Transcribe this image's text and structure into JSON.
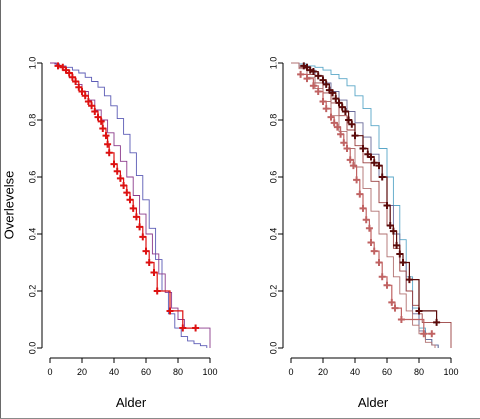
{
  "chart_data": [
    {
      "type": "line",
      "subtype": "kaplan-meier survival",
      "xlabel": "Alder",
      "ylabel": "Overlevelse",
      "xlim": [
        0,
        100
      ],
      "ylim": [
        0,
        1
      ],
      "x_ticks": [
        "0",
        "20",
        "40",
        "60",
        "80",
        "100"
      ],
      "y_ticks": [
        "0.0",
        "0.2",
        "0.4",
        "0.6",
        "0.8",
        "1.0"
      ],
      "series": [
        {
          "color": "#5b5bb5",
          "censored": false,
          "points": [
            [
              0,
              1
            ],
            [
              3,
              0.997
            ],
            [
              6,
              0.99
            ],
            [
              10,
              0.985
            ],
            [
              14,
              0.975
            ],
            [
              18,
              0.965
            ],
            [
              22,
              0.95
            ],
            [
              26,
              0.935
            ],
            [
              30,
              0.915
            ],
            [
              34,
              0.885
            ],
            [
              38,
              0.85
            ],
            [
              42,
              0.805
            ],
            [
              46,
              0.75
            ],
            [
              50,
              0.685
            ],
            [
              54,
              0.605
            ],
            [
              58,
              0.52
            ],
            [
              62,
              0.42
            ],
            [
              66,
              0.31
            ],
            [
              70,
              0.2
            ],
            [
              74,
              0.12
            ],
            [
              78,
              0.07
            ],
            [
              82,
              0.04
            ],
            [
              86,
              0.025
            ],
            [
              90,
              0.015
            ],
            [
              94,
              0.008
            ],
            [
              98,
              0
            ]
          ]
        },
        {
          "color": "#8b3a8b",
          "censored": false,
          "points": [
            [
              0,
              1
            ],
            [
              4,
              0.99
            ],
            [
              8,
              0.975
            ],
            [
              12,
              0.95
            ],
            [
              16,
              0.925
            ],
            [
              20,
              0.9
            ],
            [
              24,
              0.87
            ],
            [
              28,
              0.835
            ],
            [
              32,
              0.8
            ],
            [
              36,
              0.755
            ],
            [
              40,
              0.71
            ],
            [
              44,
              0.655
            ],
            [
              48,
              0.6
            ],
            [
              52,
              0.535
            ],
            [
              56,
              0.47
            ],
            [
              60,
              0.4
            ],
            [
              64,
              0.33
            ],
            [
              68,
              0.26
            ],
            [
              72,
              0.195
            ],
            [
              76,
              0.14
            ],
            [
              80,
              0.1
            ],
            [
              84,
              0.07
            ],
            [
              88,
              0.07
            ],
            [
              92,
              0.07
            ],
            [
              96,
              0.07
            ],
            [
              100,
              0.07
            ],
            [
              100,
              0
            ]
          ]
        },
        {
          "color": "#dd1111",
          "censored": true,
          "points": [
            [
              5,
              0.99
            ],
            [
              8,
              0.985
            ],
            [
              10,
              0.975
            ],
            [
              12,
              0.965
            ],
            [
              14,
              0.95
            ],
            [
              16,
              0.935
            ],
            [
              18,
              0.915
            ],
            [
              20,
              0.9
            ],
            [
              22,
              0.885
            ],
            [
              24,
              0.865
            ],
            [
              26,
              0.85
            ],
            [
              28,
              0.83
            ],
            [
              30,
              0.81
            ],
            [
              32,
              0.795
            ],
            [
              33,
              0.77
            ],
            [
              35,
              0.745
            ],
            [
              36,
              0.715
            ],
            [
              37,
              0.685
            ],
            [
              40,
              0.645
            ],
            [
              42,
              0.62
            ],
            [
              44,
              0.595
            ],
            [
              46,
              0.57
            ],
            [
              48,
              0.545
            ],
            [
              50,
              0.52
            ],
            [
              52,
              0.49
            ],
            [
              54,
              0.46
            ],
            [
              56,
              0.425
            ],
            [
              58,
              0.39
            ],
            [
              60,
              0.34
            ],
            [
              62,
              0.3
            ],
            [
              65,
              0.265
            ],
            [
              67,
              0.2
            ],
            [
              75,
              0.13
            ],
            [
              83,
              0.07
            ],
            [
              91,
              0.07
            ]
          ]
        }
      ]
    },
    {
      "type": "line",
      "subtype": "kaplan-meier survival",
      "xlabel": "Alder",
      "ylabel": "",
      "xlim": [
        0,
        100
      ],
      "ylim": [
        0,
        1
      ],
      "x_ticks": [
        "0",
        "20",
        "40",
        "60",
        "80",
        "100"
      ],
      "y_ticks": [
        "0.0",
        "0.2",
        "0.4",
        "0.6",
        "0.8",
        "1.0"
      ],
      "series": [
        {
          "color": "#5aa7c8",
          "censored": false,
          "points": [
            [
              0,
              1
            ],
            [
              5,
              0.997
            ],
            [
              10,
              0.99
            ],
            [
              15,
              0.985
            ],
            [
              20,
              0.975
            ],
            [
              25,
              0.96
            ],
            [
              30,
              0.945
            ],
            [
              35,
              0.92
            ],
            [
              40,
              0.885
            ],
            [
              45,
              0.84
            ],
            [
              50,
              0.78
            ],
            [
              55,
              0.7
            ],
            [
              60,
              0.6
            ],
            [
              64,
              0.5
            ],
            [
              68,
              0.38
            ],
            [
              72,
              0.25
            ],
            [
              76,
              0.14
            ],
            [
              80,
              0.07
            ],
            [
              84,
              0.03
            ],
            [
              88,
              0.01
            ],
            [
              92,
              0
            ]
          ]
        },
        {
          "color": "#6a6a9a",
          "censored": false,
          "points": [
            [
              0,
              1
            ],
            [
              5,
              0.99
            ],
            [
              10,
              0.975
            ],
            [
              15,
              0.955
            ],
            [
              20,
              0.93
            ],
            [
              25,
              0.9
            ],
            [
              30,
              0.87
            ],
            [
              35,
              0.83
            ],
            [
              40,
              0.79
            ],
            [
              45,
              0.74
            ],
            [
              50,
              0.68
            ],
            [
              55,
              0.6
            ],
            [
              60,
              0.5
            ],
            [
              64,
              0.4
            ],
            [
              68,
              0.3
            ],
            [
              72,
              0.2
            ],
            [
              76,
              0.12
            ],
            [
              80,
              0.06
            ],
            [
              84,
              0.03
            ],
            [
              88,
              0.01
            ],
            [
              92,
              0
            ]
          ]
        },
        {
          "color": "#9a4040",
          "censored": false,
          "points": [
            [
              0,
              1
            ],
            [
              5,
              0.985
            ],
            [
              10,
              0.96
            ],
            [
              15,
              0.93
            ],
            [
              20,
              0.895
            ],
            [
              25,
              0.86
            ],
            [
              30,
              0.815
            ],
            [
              35,
              0.765
            ],
            [
              40,
              0.71
            ],
            [
              45,
              0.65
            ],
            [
              50,
              0.585
            ],
            [
              55,
              0.51
            ],
            [
              60,
              0.43
            ],
            [
              64,
              0.35
            ],
            [
              68,
              0.27
            ],
            [
              72,
              0.2
            ],
            [
              76,
              0.15
            ],
            [
              80,
              0.12
            ],
            [
              82,
              0.09
            ],
            [
              90,
              0.09
            ],
            [
              100,
              0.09
            ],
            [
              100,
              0
            ]
          ]
        },
        {
          "color": "#b07070",
          "censored": false,
          "points": [
            [
              0,
              1
            ],
            [
              5,
              0.98
            ],
            [
              10,
              0.95
            ],
            [
              15,
              0.91
            ],
            [
              20,
              0.865
            ],
            [
              25,
              0.815
            ],
            [
              30,
              0.76
            ],
            [
              35,
              0.7
            ],
            [
              40,
              0.635
            ],
            [
              45,
              0.56
            ],
            [
              50,
              0.48
            ],
            [
              55,
              0.4
            ],
            [
              60,
              0.32
            ],
            [
              64,
              0.25
            ],
            [
              68,
              0.19
            ],
            [
              72,
              0.13
            ],
            [
              76,
              0.08
            ],
            [
              80,
              0.05
            ],
            [
              84,
              0.02
            ],
            [
              88,
              0.01
            ],
            [
              90,
              0
            ]
          ]
        },
        {
          "color": "#5a0a0a",
          "censored": true,
          "points": [
            [
              8,
              0.99
            ],
            [
              10,
              0.985
            ],
            [
              12,
              0.975
            ],
            [
              14,
              0.97
            ],
            [
              17,
              0.955
            ],
            [
              20,
              0.94
            ],
            [
              22,
              0.925
            ],
            [
              24,
              0.905
            ],
            [
              26,
              0.895
            ],
            [
              28,
              0.875
            ],
            [
              30,
              0.86
            ],
            [
              32,
              0.845
            ],
            [
              34,
              0.83
            ],
            [
              36,
              0.8
            ],
            [
              38,
              0.785
            ],
            [
              40,
              0.745
            ],
            [
              45,
              0.7
            ],
            [
              48,
              0.68
            ],
            [
              50,
              0.67
            ],
            [
              52,
              0.65
            ],
            [
              55,
              0.64
            ],
            [
              57,
              0.6
            ],
            [
              60,
              0.5
            ],
            [
              62,
              0.43
            ],
            [
              64,
              0.41
            ],
            [
              66,
              0.36
            ],
            [
              68,
              0.33
            ],
            [
              70,
              0.3
            ],
            [
              74,
              0.24
            ],
            [
              80,
              0.13
            ],
            [
              91,
              0.09
            ]
          ]
        },
        {
          "color": "#c06262",
          "censored": true,
          "points": [
            [
              6,
              0.96
            ],
            [
              10,
              0.945
            ],
            [
              14,
              0.92
            ],
            [
              17,
              0.9
            ],
            [
              20,
              0.865
            ],
            [
              22,
              0.84
            ],
            [
              25,
              0.81
            ],
            [
              27,
              0.79
            ],
            [
              29,
              0.775
            ],
            [
              31,
              0.75
            ],
            [
              33,
              0.72
            ],
            [
              35,
              0.7
            ],
            [
              37,
              0.66
            ],
            [
              39,
              0.64
            ],
            [
              41,
              0.59
            ],
            [
              43,
              0.54
            ],
            [
              45,
              0.49
            ],
            [
              47,
              0.45
            ],
            [
              49,
              0.42
            ],
            [
              50,
              0.37
            ],
            [
              52,
              0.34
            ],
            [
              55,
              0.3
            ],
            [
              57,
              0.25
            ],
            [
              60,
              0.22
            ],
            [
              63,
              0.16
            ],
            [
              65,
              0.14
            ],
            [
              69,
              0.1
            ],
            [
              83,
              0.05
            ],
            [
              88,
              0.05
            ]
          ]
        }
      ]
    }
  ]
}
